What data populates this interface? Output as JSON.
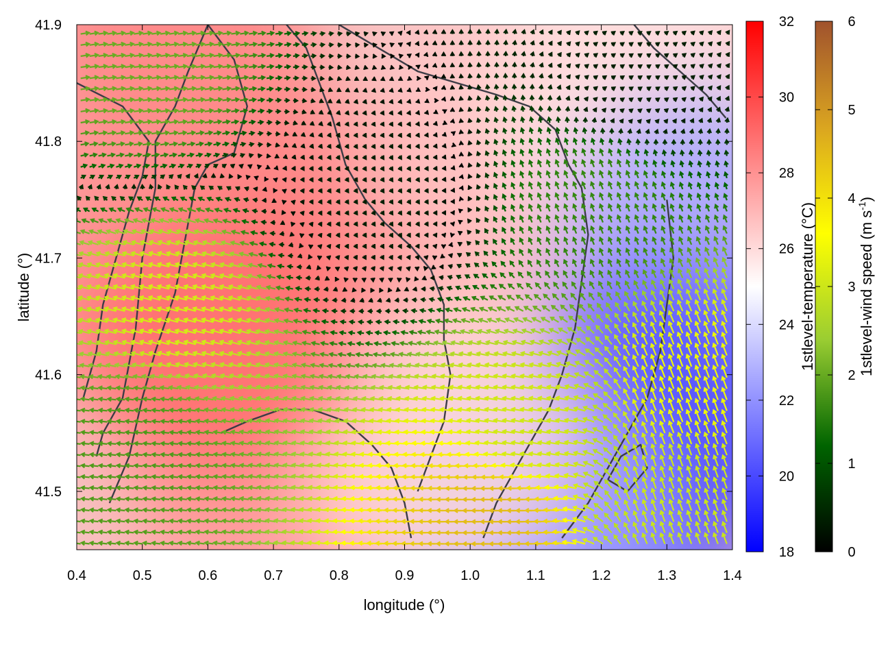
{
  "chart_data": {
    "type": "heatmap",
    "xlabel": "longitude (°)",
    "ylabel": "latitude (°)",
    "xlim": [
      0.4,
      1.4
    ],
    "ylim": [
      41.45,
      41.9
    ],
    "x_ticks": [
      "0.4",
      "0.5",
      "0.6",
      "0.7",
      "0.8",
      "0.9",
      "1.0",
      "1.1",
      "1.2",
      "1.3",
      "1.4"
    ],
    "y_ticks": [
      "41.5",
      "41.6",
      "41.7",
      "41.8",
      "41.9"
    ],
    "x_tick_values": [
      0.4,
      0.5,
      0.6,
      0.7,
      0.8,
      0.9,
      1.0,
      1.1,
      1.2,
      1.3,
      1.4
    ],
    "y_tick_values": [
      41.5,
      41.6,
      41.7,
      41.8,
      41.9
    ],
    "temperature_colorbar": {
      "label": "1stlevel-temperature (°C)",
      "range": [
        18,
        32
      ],
      "ticks": [
        "18",
        "20",
        "22",
        "24",
        "26",
        "28",
        "30",
        "32"
      ],
      "colors": [
        "#0000ff",
        "#ffffff",
        "#ff0000"
      ]
    },
    "wind_colorbar": {
      "label_main": "1stlevel-wind speed (m s",
      "label_exp": "-1",
      "label_close": ")",
      "range": [
        0,
        6
      ],
      "ticks": [
        "0",
        "1",
        "2",
        "3",
        "4",
        "5",
        "6"
      ],
      "colors": [
        "#000000",
        "#006400",
        "#9acd32",
        "#ffff00",
        "#daa520",
        "#a0522d"
      ]
    },
    "temperature_field": [
      {
        "lon": 0.55,
        "lat": 41.88,
        "t": 28.5
      },
      {
        "lon": 0.85,
        "lat": 41.72,
        "t": 28.5
      },
      {
        "lon": 0.7,
        "lat": 41.5,
        "t": 27.8
      },
      {
        "lon": 0.45,
        "lat": 41.7,
        "t": 28.0
      },
      {
        "lon": 1.05,
        "lat": 41.8,
        "t": 26.5
      },
      {
        "lon": 1.25,
        "lat": 41.84,
        "t": 25.8
      },
      {
        "lon": 1.35,
        "lat": 41.72,
        "t": 22.5
      },
      {
        "lon": 1.3,
        "lat": 41.58,
        "t": 20.5
      },
      {
        "lon": 1.22,
        "lat": 41.5,
        "t": 19.8
      },
      {
        "lon": 1.1,
        "lat": 41.48,
        "t": 22.5
      },
      {
        "lon": 0.95,
        "lat": 41.55,
        "t": 26.0
      },
      {
        "lon": 0.62,
        "lat": 41.63,
        "t": 29.0
      }
    ],
    "wind_field": [
      {
        "lon": 0.5,
        "lat": 41.86,
        "u": 2.0,
        "v": 0.3
      },
      {
        "lon": 0.55,
        "lat": 41.65,
        "u": -3.0,
        "v": 0.8
      },
      {
        "lon": 0.5,
        "lat": 41.55,
        "u": -1.8,
        "v": 0.2
      },
      {
        "lon": 0.85,
        "lat": 41.75,
        "u": 0.2,
        "v": -0.3
      },
      {
        "lon": 1.05,
        "lat": 41.48,
        "u": -4.5,
        "v": 0.0
      },
      {
        "lon": 1.1,
        "lat": 41.55,
        "u": -3.0,
        "v": 0.5
      },
      {
        "lon": 1.34,
        "lat": 41.58,
        "u": -1.2,
        "v": 3.2
      },
      {
        "lon": 1.32,
        "lat": 41.5,
        "u": -1.0,
        "v": 2.8
      },
      {
        "lon": 1.2,
        "lat": 41.75,
        "u": -0.6,
        "v": 1.5
      },
      {
        "lon": 1.25,
        "lat": 41.85,
        "u": 0.3,
        "v": 0.2
      }
    ],
    "coastlines": [
      [
        [
          0.6,
          41.9
        ],
        [
          0.57,
          41.86
        ],
        [
          0.55,
          41.83
        ],
        [
          0.52,
          41.8
        ],
        [
          0.52,
          41.76
        ],
        [
          0.5,
          41.7
        ],
        [
          0.49,
          41.64
        ],
        [
          0.47,
          41.58
        ],
        [
          0.44,
          41.55
        ],
        [
          0.43,
          41.53
        ]
      ],
      [
        [
          0.6,
          41.9
        ],
        [
          0.64,
          41.87
        ],
        [
          0.66,
          41.83
        ],
        [
          0.64,
          41.79
        ],
        [
          0.6,
          41.78
        ],
        [
          0.58,
          41.76
        ],
        [
          0.57,
          41.73
        ],
        [
          0.56,
          41.7
        ],
        [
          0.55,
          41.67
        ],
        [
          0.52,
          41.62
        ],
        [
          0.5,
          41.58
        ],
        [
          0.48,
          41.53
        ],
        [
          0.45,
          41.49
        ]
      ],
      [
        [
          0.4,
          41.85
        ],
        [
          0.47,
          41.83
        ],
        [
          0.51,
          41.8
        ],
        [
          0.5,
          41.77
        ],
        [
          0.48,
          41.74
        ],
        [
          0.46,
          41.7
        ],
        [
          0.44,
          41.66
        ],
        [
          0.43,
          41.62
        ],
        [
          0.41,
          41.58
        ]
      ],
      [
        [
          0.72,
          41.9
        ],
        [
          0.75,
          41.88
        ],
        [
          0.77,
          41.85
        ],
        [
          0.79,
          41.82
        ],
        [
          0.81,
          41.78
        ],
        [
          0.84,
          41.75
        ],
        [
          0.87,
          41.73
        ],
        [
          0.91,
          41.71
        ],
        [
          0.94,
          41.69
        ],
        [
          0.96,
          41.66
        ],
        [
          0.96,
          41.63
        ],
        [
          0.97,
          41.6
        ],
        [
          0.96,
          41.56
        ],
        [
          0.94,
          41.53
        ],
        [
          0.92,
          41.5
        ]
      ],
      [
        [
          0.8,
          41.9
        ],
        [
          0.86,
          41.88
        ],
        [
          0.92,
          41.86
        ],
        [
          0.98,
          41.85
        ],
        [
          1.04,
          41.84
        ],
        [
          1.09,
          41.83
        ],
        [
          1.13,
          41.81
        ],
        [
          1.15,
          41.78
        ],
        [
          1.17,
          41.76
        ],
        [
          1.18,
          41.72
        ],
        [
          1.17,
          41.68
        ],
        [
          1.16,
          41.64
        ],
        [
          1.14,
          41.6
        ],
        [
          1.12,
          41.57
        ],
        [
          1.1,
          41.55
        ],
        [
          1.07,
          41.52
        ],
        [
          1.04,
          41.49
        ],
        [
          1.02,
          41.46
        ]
      ],
      [
        [
          1.3,
          41.75
        ],
        [
          1.31,
          41.7
        ],
        [
          1.3,
          41.66
        ],
        [
          1.29,
          41.62
        ],
        [
          1.27,
          41.58
        ],
        [
          1.24,
          41.55
        ],
        [
          1.21,
          41.52
        ],
        [
          1.18,
          41.49
        ],
        [
          1.14,
          41.46
        ]
      ],
      [
        [
          1.25,
          41.9
        ],
        [
          1.28,
          41.88
        ],
        [
          1.32,
          41.86
        ],
        [
          1.36,
          41.84
        ],
        [
          1.39,
          41.82
        ]
      ],
      [
        [
          1.21,
          41.51
        ],
        [
          1.24,
          41.5
        ],
        [
          1.27,
          41.52
        ],
        [
          1.26,
          41.54
        ],
        [
          1.23,
          41.53
        ],
        [
          1.21,
          41.51
        ]
      ],
      [
        [
          0.62,
          41.55
        ],
        [
          0.66,
          41.56
        ],
        [
          0.71,
          41.57
        ],
        [
          0.76,
          41.57
        ],
        [
          0.81,
          41.56
        ],
        [
          0.85,
          41.54
        ],
        [
          0.88,
          41.52
        ],
        [
          0.9,
          41.49
        ],
        [
          0.91,
          41.46
        ]
      ]
    ]
  }
}
